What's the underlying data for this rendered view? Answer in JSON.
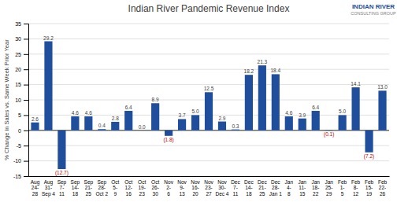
{
  "chart_data": {
    "type": "bar",
    "title": "Indian River Pandemic Revenue Index",
    "y_label": "% Change in Sales vs. Same Week Prior Year",
    "categories": [
      "Aug\n24-\n28",
      "Aug\n31-\nSep 4",
      "Sep\n7-\n11",
      "Sep\n14-\n18",
      "Sep\n21-\n25",
      "Sep\n28-\nOct 2",
      "Oct\n5-\n9",
      "Oct\n12-\n16",
      "Oct\n19-\n23",
      "Oct\n26-\n30",
      "Nov\n2-\n6",
      "Nov\n9-\n13",
      "Nov\n16-\n20",
      "Nov\n23-\n27",
      "Nov\n30-\nDec 4",
      "Dec\n7-\n11",
      "Dec\n14-\n18",
      "Dec\n21-\n25",
      "Dec\n28-\nJan 1",
      "Jan\n4-\n8",
      "Jan\n11-\n15",
      "Jan\n18-\n22",
      "Jan\n25-\n29",
      "Feb\n1-\n5",
      "Feb\n8-\n12",
      "Feb\n15-\n19",
      "Feb\n22-\n26"
    ],
    "values": [
      2.6,
      29.2,
      -12.7,
      4.6,
      4.6,
      0.4,
      2.8,
      6.4,
      0.0,
      8.9,
      -1.8,
      3.7,
      5.0,
      12.5,
      2.9,
      0.3,
      18.2,
      21.3,
      18.4,
      4.6,
      3.9,
      6.4,
      -0.1,
      5.0,
      14.1,
      -7.2,
      13.0
    ],
    "value_labels": [
      "2.6",
      "29.2",
      "(12.7)",
      "4.6",
      "4.6",
      "0.4",
      "2.8",
      "6.4",
      "0.0",
      "8.9",
      "(1.8)",
      "3.7",
      "5.0",
      "12.5",
      "2.9",
      "0.3",
      "18.2",
      "21.3",
      "18.4",
      "4.6",
      "3.9",
      "6.4",
      "(0.1)",
      "5.0",
      "14.1",
      "(7.2)",
      "13.0"
    ],
    "color": "#1f4e9c",
    "ylim": [
      -15,
      35
    ],
    "yticks": [
      -15,
      -10,
      -5,
      0,
      5,
      10,
      15,
      20,
      25,
      30,
      35
    ],
    "grid": true,
    "data_labels": true,
    "annotations": [
      "INDIAN RIVER",
      "CONSULTING GROUP"
    ]
  }
}
